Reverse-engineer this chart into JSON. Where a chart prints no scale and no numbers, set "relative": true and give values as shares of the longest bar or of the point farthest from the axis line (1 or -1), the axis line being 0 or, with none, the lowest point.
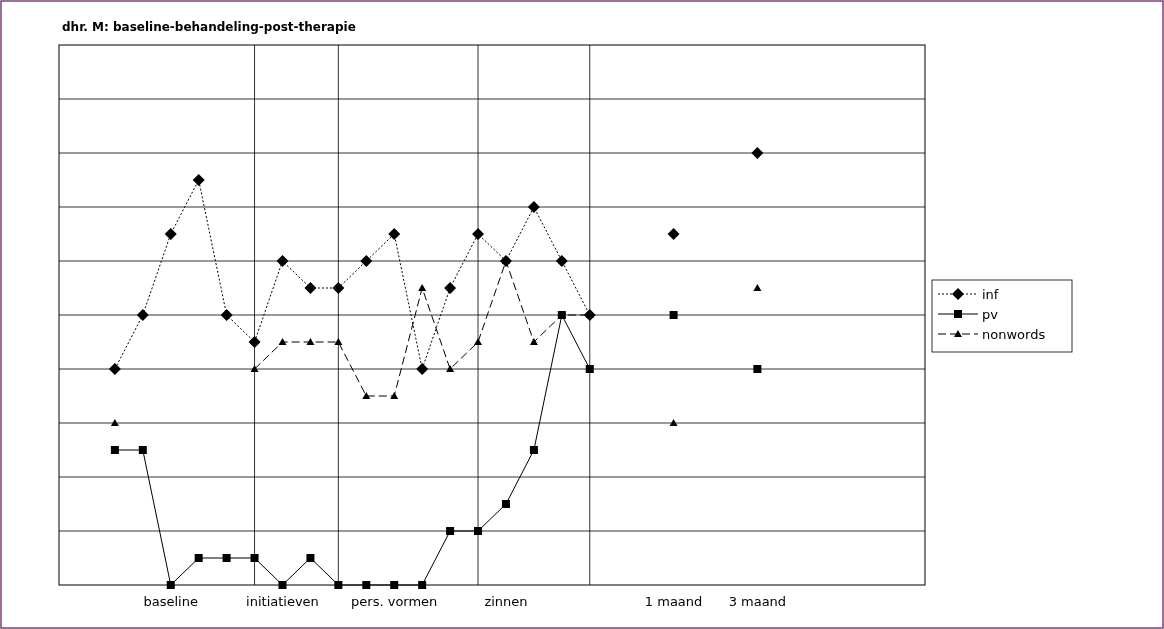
{
  "chart_data": {
    "type": "line",
    "title": "dhr. M: baseline-behandeling-post-therapie",
    "relative": true,
    "grid": true,
    "legend": "right",
    "categories": [
      null,
      null,
      null,
      null,
      "baseline",
      null,
      null,
      null,
      "initiatieven",
      null,
      null,
      null,
      "pers. vormen",
      null,
      null,
      null,
      "zinnen",
      null,
      null,
      null,
      null,
      null,
      "1 maand",
      null,
      null,
      "3 maand",
      null,
      null,
      null,
      null,
      null
    ],
    "series": [
      {
        "name": "inf",
        "color": "#000000",
        "marker": "diamond",
        "line_style": "dotted",
        "values": [
          null,
          null,
          0.5,
          0.625,
          0.8125,
          0.9375,
          0.625,
          0.5625,
          0.75,
          0.6875,
          0.6875,
          0.75,
          0.8125,
          0.5,
          0.6875,
          0.8125,
          0.75,
          0.875,
          0.75,
          0.625,
          null,
          null,
          0.8125,
          null,
          null,
          1,
          null,
          null,
          null,
          null,
          null
        ]
      },
      {
        "name": "pv",
        "color": "#000000",
        "marker": "square",
        "line_style": "solid",
        "values": [
          null,
          null,
          0.3125,
          0.3125,
          0,
          0.0625,
          0.0625,
          0.0625,
          0,
          0.0625,
          0,
          0,
          0,
          0,
          0.125,
          0.125,
          0.1875,
          0.3125,
          0.625,
          0.5,
          null,
          null,
          0.625,
          null,
          null,
          0.5,
          null,
          null,
          null,
          null,
          null
        ]
      },
      {
        "name": "nonwords",
        "color": "#000000",
        "marker": "triangle",
        "line_style": "dashed",
        "values": [
          null,
          null,
          0.375,
          null,
          null,
          null,
          null,
          0.5,
          0.5625,
          0.5625,
          0.5625,
          0.4375,
          0.4375,
          0.6875,
          0.5,
          0.5625,
          0.75,
          0.5625,
          0.625,
          0.625,
          null,
          null,
          0.375,
          null,
          null,
          0.6875,
          null,
          null,
          null,
          null,
          null
        ]
      }
    ]
  }
}
